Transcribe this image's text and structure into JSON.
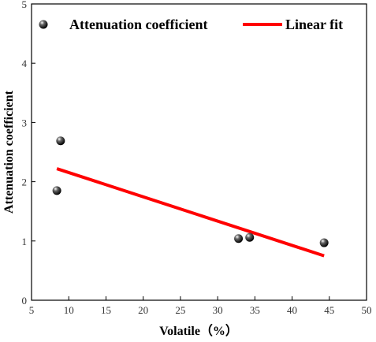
{
  "chart_data": {
    "type": "scatter",
    "xlabel": "Volatile（%）",
    "ylabel": "Attenuation coefficient",
    "xlim": [
      5,
      50
    ],
    "ylim": [
      0,
      5
    ],
    "xticks": [
      5,
      10,
      15,
      20,
      25,
      30,
      35,
      40,
      45,
      50
    ],
    "yticks": [
      0,
      1,
      2,
      3,
      4,
      5
    ],
    "legend_position": "top",
    "series": [
      {
        "name": "Attenuation coefficient",
        "kind": "scatter",
        "color": "#000000",
        "points": [
          {
            "x": 8.4,
            "y": 1.85
          },
          {
            "x": 8.9,
            "y": 2.69
          },
          {
            "x": 32.8,
            "y": 1.04
          },
          {
            "x": 34.3,
            "y": 1.06
          },
          {
            "x": 44.3,
            "y": 0.97
          }
        ]
      },
      {
        "name": "Linear fit",
        "kind": "line",
        "color": "#ff0000",
        "points": [
          {
            "x": 8.4,
            "y": 2.22
          },
          {
            "x": 44.3,
            "y": 0.75
          }
        ]
      }
    ]
  }
}
